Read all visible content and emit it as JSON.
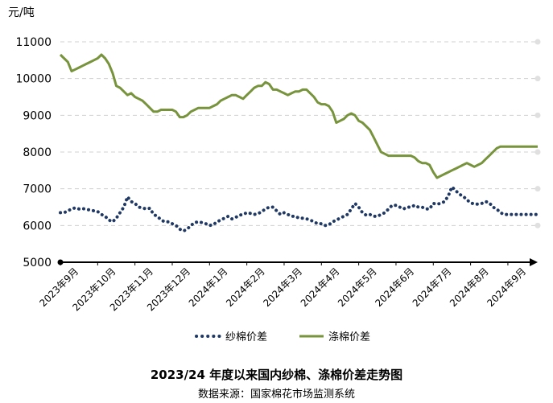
{
  "chart_data": {
    "type": "line",
    "title": "2023/24 年度以来国内纱棉、涤棉价差走势图",
    "source": "数据来源：国家棉花市场监测系统",
    "ylabel": "元/吨",
    "ylim": [
      5000,
      11000
    ],
    "yticks": [
      "5000",
      "6000",
      "7000",
      "8000",
      "9000",
      "10000",
      "11000"
    ],
    "ytick_values": [
      5000,
      6000,
      7000,
      8000,
      9000,
      10000,
      11000
    ],
    "x_ticks": [
      "2023年9月",
      "2023年10月",
      "2023年11月",
      "2023年12月",
      "2024年1月",
      "2024年2月",
      "2024年3月",
      "2024年4月",
      "2024年5月",
      "2024年6月",
      "2024年7月",
      "2024年8月",
      "2024年9月"
    ],
    "x_range": [
      0,
      12.8
    ],
    "grid": "horizontal dashed",
    "legend": "bottom",
    "colors": {
      "yarn": "#1f3864",
      "poly": "#77933c",
      "grid": "#d0d0d0",
      "axis": "#000000"
    },
    "series": [
      {
        "name": "纱棉价差",
        "style": "dotted",
        "x": [
          0.0,
          0.1,
          0.2,
          0.3,
          0.4,
          0.5,
          0.6,
          0.7,
          0.8,
          0.9,
          1.0,
          1.1,
          1.2,
          1.3,
          1.4,
          1.5,
          1.6,
          1.7,
          1.8,
          1.9,
          2.0,
          2.1,
          2.2,
          2.3,
          2.4,
          2.5,
          2.6,
          2.7,
          2.8,
          2.9,
          3.0,
          3.1,
          3.2,
          3.3,
          3.4,
          3.5,
          3.6,
          3.7,
          3.8,
          3.9,
          4.0,
          4.1,
          4.2,
          4.3,
          4.4,
          4.5,
          4.6,
          4.7,
          4.8,
          4.9,
          5.0,
          5.1,
          5.2,
          5.3,
          5.4,
          5.5,
          5.6,
          5.7,
          5.8,
          5.9,
          6.0,
          6.1,
          6.2,
          6.3,
          6.4,
          6.5,
          6.6,
          6.7,
          6.8,
          6.9,
          7.0,
          7.1,
          7.2,
          7.3,
          7.4,
          7.5,
          7.6,
          7.7,
          7.8,
          7.9,
          8.0,
          8.1,
          8.2,
          8.3,
          8.4,
          8.5,
          8.6,
          8.7,
          8.8,
          8.9,
          9.0,
          9.1,
          9.2,
          9.3,
          9.4,
          9.5,
          9.6,
          9.7,
          9.8,
          9.9,
          10.0,
          10.1,
          10.2,
          10.3,
          10.4,
          10.5,
          10.6,
          10.7,
          10.8,
          10.9,
          11.0,
          11.1,
          11.2,
          11.3,
          11.4,
          11.5,
          11.6,
          11.7,
          11.8,
          11.9,
          12.0,
          12.1,
          12.2,
          12.3,
          12.4,
          12.5,
          12.6,
          12.7,
          12.8
        ],
        "values": [
          6350,
          6350,
          6400,
          6450,
          6480,
          6450,
          6460,
          6440,
          6420,
          6400,
          6380,
          6300,
          6250,
          6150,
          6100,
          6200,
          6350,
          6500,
          6780,
          6650,
          6600,
          6500,
          6480,
          6450,
          6470,
          6300,
          6250,
          6150,
          6100,
          6100,
          6050,
          6000,
          5900,
          5850,
          5900,
          6000,
          6080,
          6100,
          6080,
          6050,
          6000,
          6020,
          6100,
          6150,
          6200,
          6250,
          6180,
          6220,
          6280,
          6300,
          6350,
          6330,
          6300,
          6320,
          6380,
          6450,
          6500,
          6500,
          6400,
          6300,
          6350,
          6300,
          6250,
          6250,
          6200,
          6200,
          6180,
          6150,
          6100,
          6050,
          6050,
          6000,
          6020,
          6100,
          6150,
          6200,
          6250,
          6300,
          6450,
          6600,
          6500,
          6350,
          6280,
          6300,
          6250,
          6250,
          6300,
          6350,
          6450,
          6550,
          6550,
          6500,
          6450,
          6500,
          6500,
          6550,
          6500,
          6500,
          6450,
          6450,
          6600,
          6580,
          6600,
          6650,
          6800,
          7050,
          6950,
          6850,
          6800,
          6700,
          6620,
          6580,
          6580,
          6600,
          6650,
          6620,
          6500,
          6450,
          6350,
          6300,
          6300,
          6300,
          6300,
          6300,
          6300,
          6300,
          6300,
          6300,
          6300
        ]
      },
      {
        "name": "涤棉价差",
        "style": "solid",
        "x": [
          0.0,
          0.1,
          0.2,
          0.3,
          0.4,
          0.5,
          0.6,
          0.7,
          0.8,
          0.9,
          1.0,
          1.1,
          1.2,
          1.3,
          1.4,
          1.5,
          1.6,
          1.7,
          1.8,
          1.9,
          2.0,
          2.1,
          2.2,
          2.3,
          2.4,
          2.5,
          2.6,
          2.7,
          2.8,
          2.9,
          3.0,
          3.1,
          3.2,
          3.3,
          3.4,
          3.5,
          3.6,
          3.7,
          3.8,
          3.9,
          4.0,
          4.1,
          4.2,
          4.3,
          4.4,
          4.5,
          4.6,
          4.7,
          4.8,
          4.9,
          5.0,
          5.1,
          5.2,
          5.3,
          5.4,
          5.5,
          5.6,
          5.7,
          5.8,
          5.9,
          6.0,
          6.1,
          6.2,
          6.3,
          6.4,
          6.5,
          6.6,
          6.7,
          6.8,
          6.9,
          7.0,
          7.1,
          7.2,
          7.3,
          7.4,
          7.5,
          7.6,
          7.7,
          7.8,
          7.9,
          8.0,
          8.1,
          8.2,
          8.3,
          8.4,
          8.5,
          8.6,
          8.7,
          8.8,
          8.9,
          9.0,
          9.1,
          9.2,
          9.3,
          9.4,
          9.5,
          9.6,
          9.7,
          9.8,
          9.9,
          10.0,
          10.1,
          10.2,
          10.3,
          10.4,
          10.5,
          10.6,
          10.7,
          10.8,
          10.9,
          11.0,
          11.1,
          11.2,
          11.3,
          11.4,
          11.5,
          11.6,
          11.7,
          11.8,
          11.9,
          12.0,
          12.1,
          12.2,
          12.3,
          12.4,
          12.5,
          12.6,
          12.7,
          12.8
        ],
        "values": [
          10650,
          10550,
          10450,
          10200,
          10250,
          10300,
          10350,
          10400,
          10450,
          10500,
          10550,
          10650,
          10550,
          10400,
          10150,
          9800,
          9750,
          9650,
          9550,
          9600,
          9500,
          9450,
          9400,
          9300,
          9200,
          9100,
          9100,
          9150,
          9150,
          9150,
          9150,
          9100,
          8950,
          8950,
          9000,
          9100,
          9150,
          9200,
          9200,
          9200,
          9200,
          9250,
          9300,
          9400,
          9450,
          9500,
          9550,
          9550,
          9500,
          9450,
          9550,
          9650,
          9750,
          9800,
          9800,
          9900,
          9850,
          9700,
          9700,
          9650,
          9600,
          9550,
          9600,
          9650,
          9650,
          9700,
          9700,
          9600,
          9500,
          9350,
          9300,
          9300,
          9250,
          9100,
          8800,
          8850,
          8900,
          9000,
          9050,
          9000,
          8850,
          8800,
          8700,
          8600,
          8400,
          8200,
          8000,
          7950,
          7900,
          7900,
          7900,
          7900,
          7900,
          7900,
          7900,
          7850,
          7750,
          7700,
          7700,
          7650,
          7450,
          7300,
          7350,
          7400,
          7450,
          7500,
          7550,
          7600,
          7650,
          7700,
          7650,
          7600,
          7650,
          7700,
          7800,
          7900,
          8000,
          8100,
          8150,
          8150,
          8150,
          8150,
          8150,
          8150,
          8150,
          8150,
          8150,
          8150,
          8150
        ]
      }
    ]
  }
}
